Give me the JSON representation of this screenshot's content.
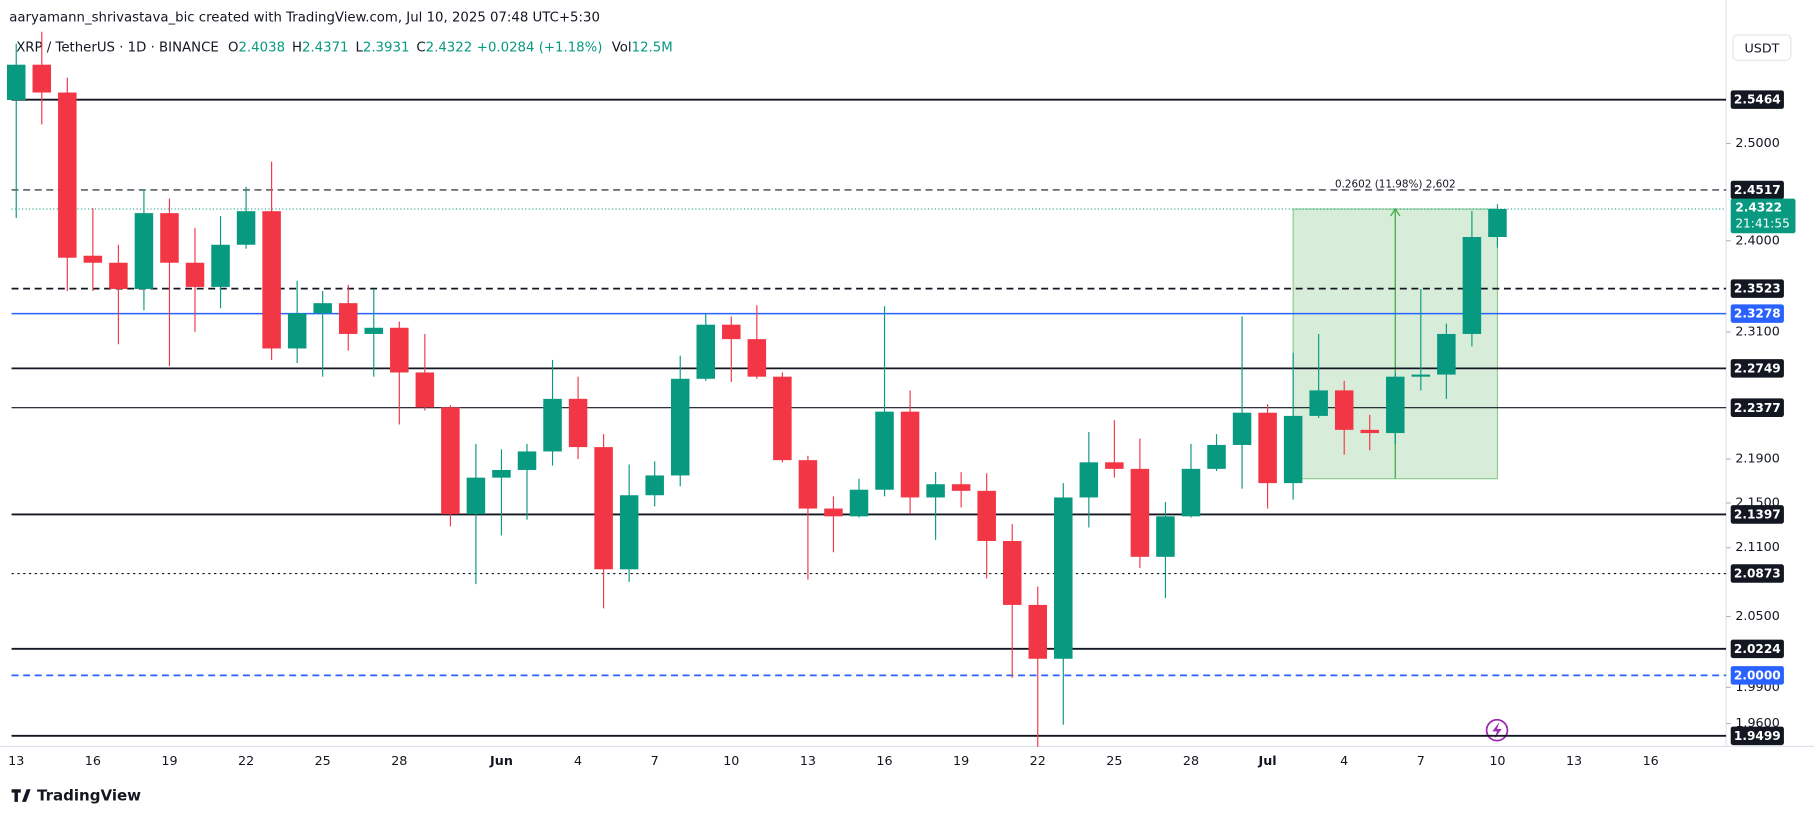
{
  "header": {
    "author_line": "aaryamann_shrivastava_bic created with TradingView.com, Jul 10, 2025 07:48 UTC+5:30",
    "ohlc": [
      {
        "label": "O",
        "value": "2.4038"
      },
      {
        "label": "H",
        "value": "2.4371"
      },
      {
        "label": "L",
        "value": "2.3931"
      },
      {
        "label": "C",
        "value": "2.4322"
      }
    ],
    "change": "+0.0284 (+1.18%)",
    "vol_label": "Vol",
    "vol": "12.5M"
  },
  "footer": {
    "brand": "TradingView"
  },
  "chart_data": {
    "type": "candlestick",
    "title": "XRP / TetherUS · 1D · BINANCE",
    "currency": "USDT",
    "categories": [
      "13",
      null,
      null,
      "16",
      null,
      null,
      "19",
      null,
      null,
      "22",
      null,
      null,
      "25",
      null,
      null,
      "28",
      null,
      null,
      null,
      "Jun",
      null,
      null,
      "4",
      null,
      null,
      "7",
      null,
      null,
      "10",
      null,
      null,
      "13",
      null,
      null,
      "16",
      null,
      null,
      "19",
      null,
      null,
      "22",
      null,
      null,
      "25",
      null,
      null,
      "28",
      null,
      null,
      "Jul",
      null,
      null,
      "4",
      null,
      null,
      "7",
      null,
      null,
      "10",
      null,
      null,
      "13",
      null,
      null,
      "16",
      null,
      null
    ],
    "open": [
      2.546,
      2.584,
      2.554,
      2.385,
      2.378,
      2.352,
      2.428,
      2.378,
      2.354,
      2.396,
      2.43,
      2.294,
      2.328,
      2.338,
      2.308,
      2.314,
      2.271,
      2.238,
      2.14,
      2.173,
      2.18,
      2.197,
      2.246,
      2.201,
      2.091,
      2.157,
      2.175,
      2.265,
      2.317,
      2.303,
      2.267,
      2.189,
      2.145,
      2.138,
      2.162,
      2.234,
      2.155,
      2.167,
      2.161,
      2.116,
      2.06,
      2.014,
      2.155,
      2.187,
      2.181,
      2.102,
      2.138,
      2.181,
      2.203,
      2.233,
      2.168,
      2.23,
      2.254,
      2.217,
      2.214,
      2.267,
      2.269,
      2.308,
      2.4038,
      null,
      null,
      null,
      null,
      null,
      null,
      null,
      null
    ],
    "high": [
      2.607,
      2.62,
      2.57,
      2.433,
      2.396,
      2.452,
      2.443,
      2.413,
      2.425,
      2.455,
      2.481,
      2.36,
      2.35,
      2.356,
      2.352,
      2.32,
      2.308,
      2.24,
      2.204,
      2.199,
      2.204,
      2.283,
      2.267,
      2.213,
      2.185,
      2.188,
      2.287,
      2.328,
      2.325,
      2.336,
      2.271,
      2.193,
      2.156,
      2.172,
      2.335,
      2.254,
      2.178,
      2.178,
      2.177,
      2.131,
      2.076,
      2.168,
      2.215,
      2.226,
      2.209,
      2.151,
      2.204,
      2.213,
      2.325,
      2.241,
      2.29,
      2.308,
      2.263,
      2.231,
      2.271,
      2.352,
      2.318,
      2.43,
      2.4371,
      null,
      null,
      null,
      null,
      null,
      null,
      null,
      null
    ],
    "low": [
      2.423,
      2.52,
      2.35,
      2.35,
      2.298,
      2.331,
      2.277,
      2.31,
      2.333,
      2.392,
      2.283,
      2.28,
      2.267,
      2.292,
      2.267,
      2.222,
      2.235,
      2.129,
      2.078,
      2.121,
      2.135,
      2.184,
      2.19,
      2.057,
      2.08,
      2.147,
      2.165,
      2.263,
      2.262,
      2.265,
      2.187,
      2.082,
      2.106,
      2.137,
      2.156,
      2.14,
      2.117,
      2.146,
      2.083,
      1.998,
      1.941,
      1.959,
      2.128,
      2.173,
      2.092,
      2.066,
      2.137,
      2.179,
      2.163,
      2.145,
      2.153,
      2.228,
      2.194,
      2.198,
      2.204,
      2.254,
      2.246,
      2.296,
      2.3931,
      null,
      null,
      null,
      null,
      null,
      null,
      null,
      null
    ],
    "close": [
      2.584,
      2.554,
      2.383,
      2.378,
      2.352,
      2.428,
      2.378,
      2.354,
      2.396,
      2.43,
      2.294,
      2.328,
      2.338,
      2.308,
      2.314,
      2.271,
      2.238,
      2.14,
      2.173,
      2.18,
      2.197,
      2.246,
      2.201,
      2.091,
      2.157,
      2.175,
      2.265,
      2.317,
      2.303,
      2.267,
      2.189,
      2.145,
      2.138,
      2.162,
      2.234,
      2.155,
      2.167,
      2.161,
      2.116,
      2.06,
      2.014,
      2.155,
      2.187,
      2.181,
      2.102,
      2.138,
      2.181,
      2.203,
      2.233,
      2.168,
      2.23,
      2.254,
      2.217,
      2.214,
      2.267,
      2.269,
      2.308,
      2.4038,
      2.4322,
      null,
      null,
      null,
      null,
      null,
      null,
      null,
      null
    ],
    "up_color": "#089981",
    "down_color": "#f23645",
    "log_scale": true,
    "ylim": [
      1.9413,
      2.6165
    ],
    "yticks": [
      {
        "value": 2.5,
        "label": "2.5000"
      },
      {
        "value": 2.4,
        "label": "2.4000"
      },
      {
        "value": 2.31,
        "label": "2.3100"
      },
      {
        "value": 2.19,
        "label": "2.1900"
      },
      {
        "value": 2.15,
        "label": "2.1500"
      },
      {
        "value": 2.11,
        "label": "2.1100"
      },
      {
        "value": 2.05,
        "label": "2.0500"
      },
      {
        "value": 1.99,
        "label": "1.9900"
      },
      {
        "value": 1.96,
        "label": "1.9600"
      }
    ],
    "levels": [
      {
        "price": 2.5464,
        "label": "2.5464",
        "style": "solid",
        "color": "#131722",
        "width": 1.6
      },
      {
        "price": 2.4517,
        "label": "2.4517",
        "style": "dashed",
        "color": "#131722",
        "width": 1
      },
      {
        "price": 2.3523,
        "label": "2.3523",
        "style": "dashed",
        "color": "#131722",
        "width": 1.6
      },
      {
        "price": 2.3278,
        "label": "2.3278",
        "style": "solid",
        "color": "#2962ff",
        "width": 1.3
      },
      {
        "price": 2.2749,
        "label": "2.2749",
        "style": "solid",
        "color": "#131722",
        "width": 1.6
      },
      {
        "price": 2.2377,
        "label": "2.2377",
        "style": "solid",
        "color": "#131722",
        "width": 1
      },
      {
        "price": 2.1397,
        "label": "2.1397",
        "style": "solid",
        "color": "#131722",
        "width": 1.6
      },
      {
        "price": 2.0873,
        "label": "2.0873",
        "style": "dotted",
        "color": "#131722",
        "width": 1
      },
      {
        "price": 2.0224,
        "label": "2.0224",
        "style": "solid",
        "color": "#131722",
        "width": 1.6
      },
      {
        "price": 2.0,
        "label": "2.0000",
        "style": "dashed",
        "color": "#2962ff",
        "width": 1.5
      },
      {
        "price": 1.9499,
        "label": "1.9499",
        "style": "solid",
        "color": "#131722",
        "width": 1.6
      }
    ],
    "last_price": {
      "value": 2.4322,
      "label": "2.4322",
      "countdown": "21:41:55",
      "color": "#089981"
    },
    "measure": {
      "start_index": 50,
      "end_index": 58,
      "from": 2.172,
      "to": 2.4322,
      "label": "0.2602 (11.98%) 2,602",
      "color": "#4caf50"
    }
  }
}
